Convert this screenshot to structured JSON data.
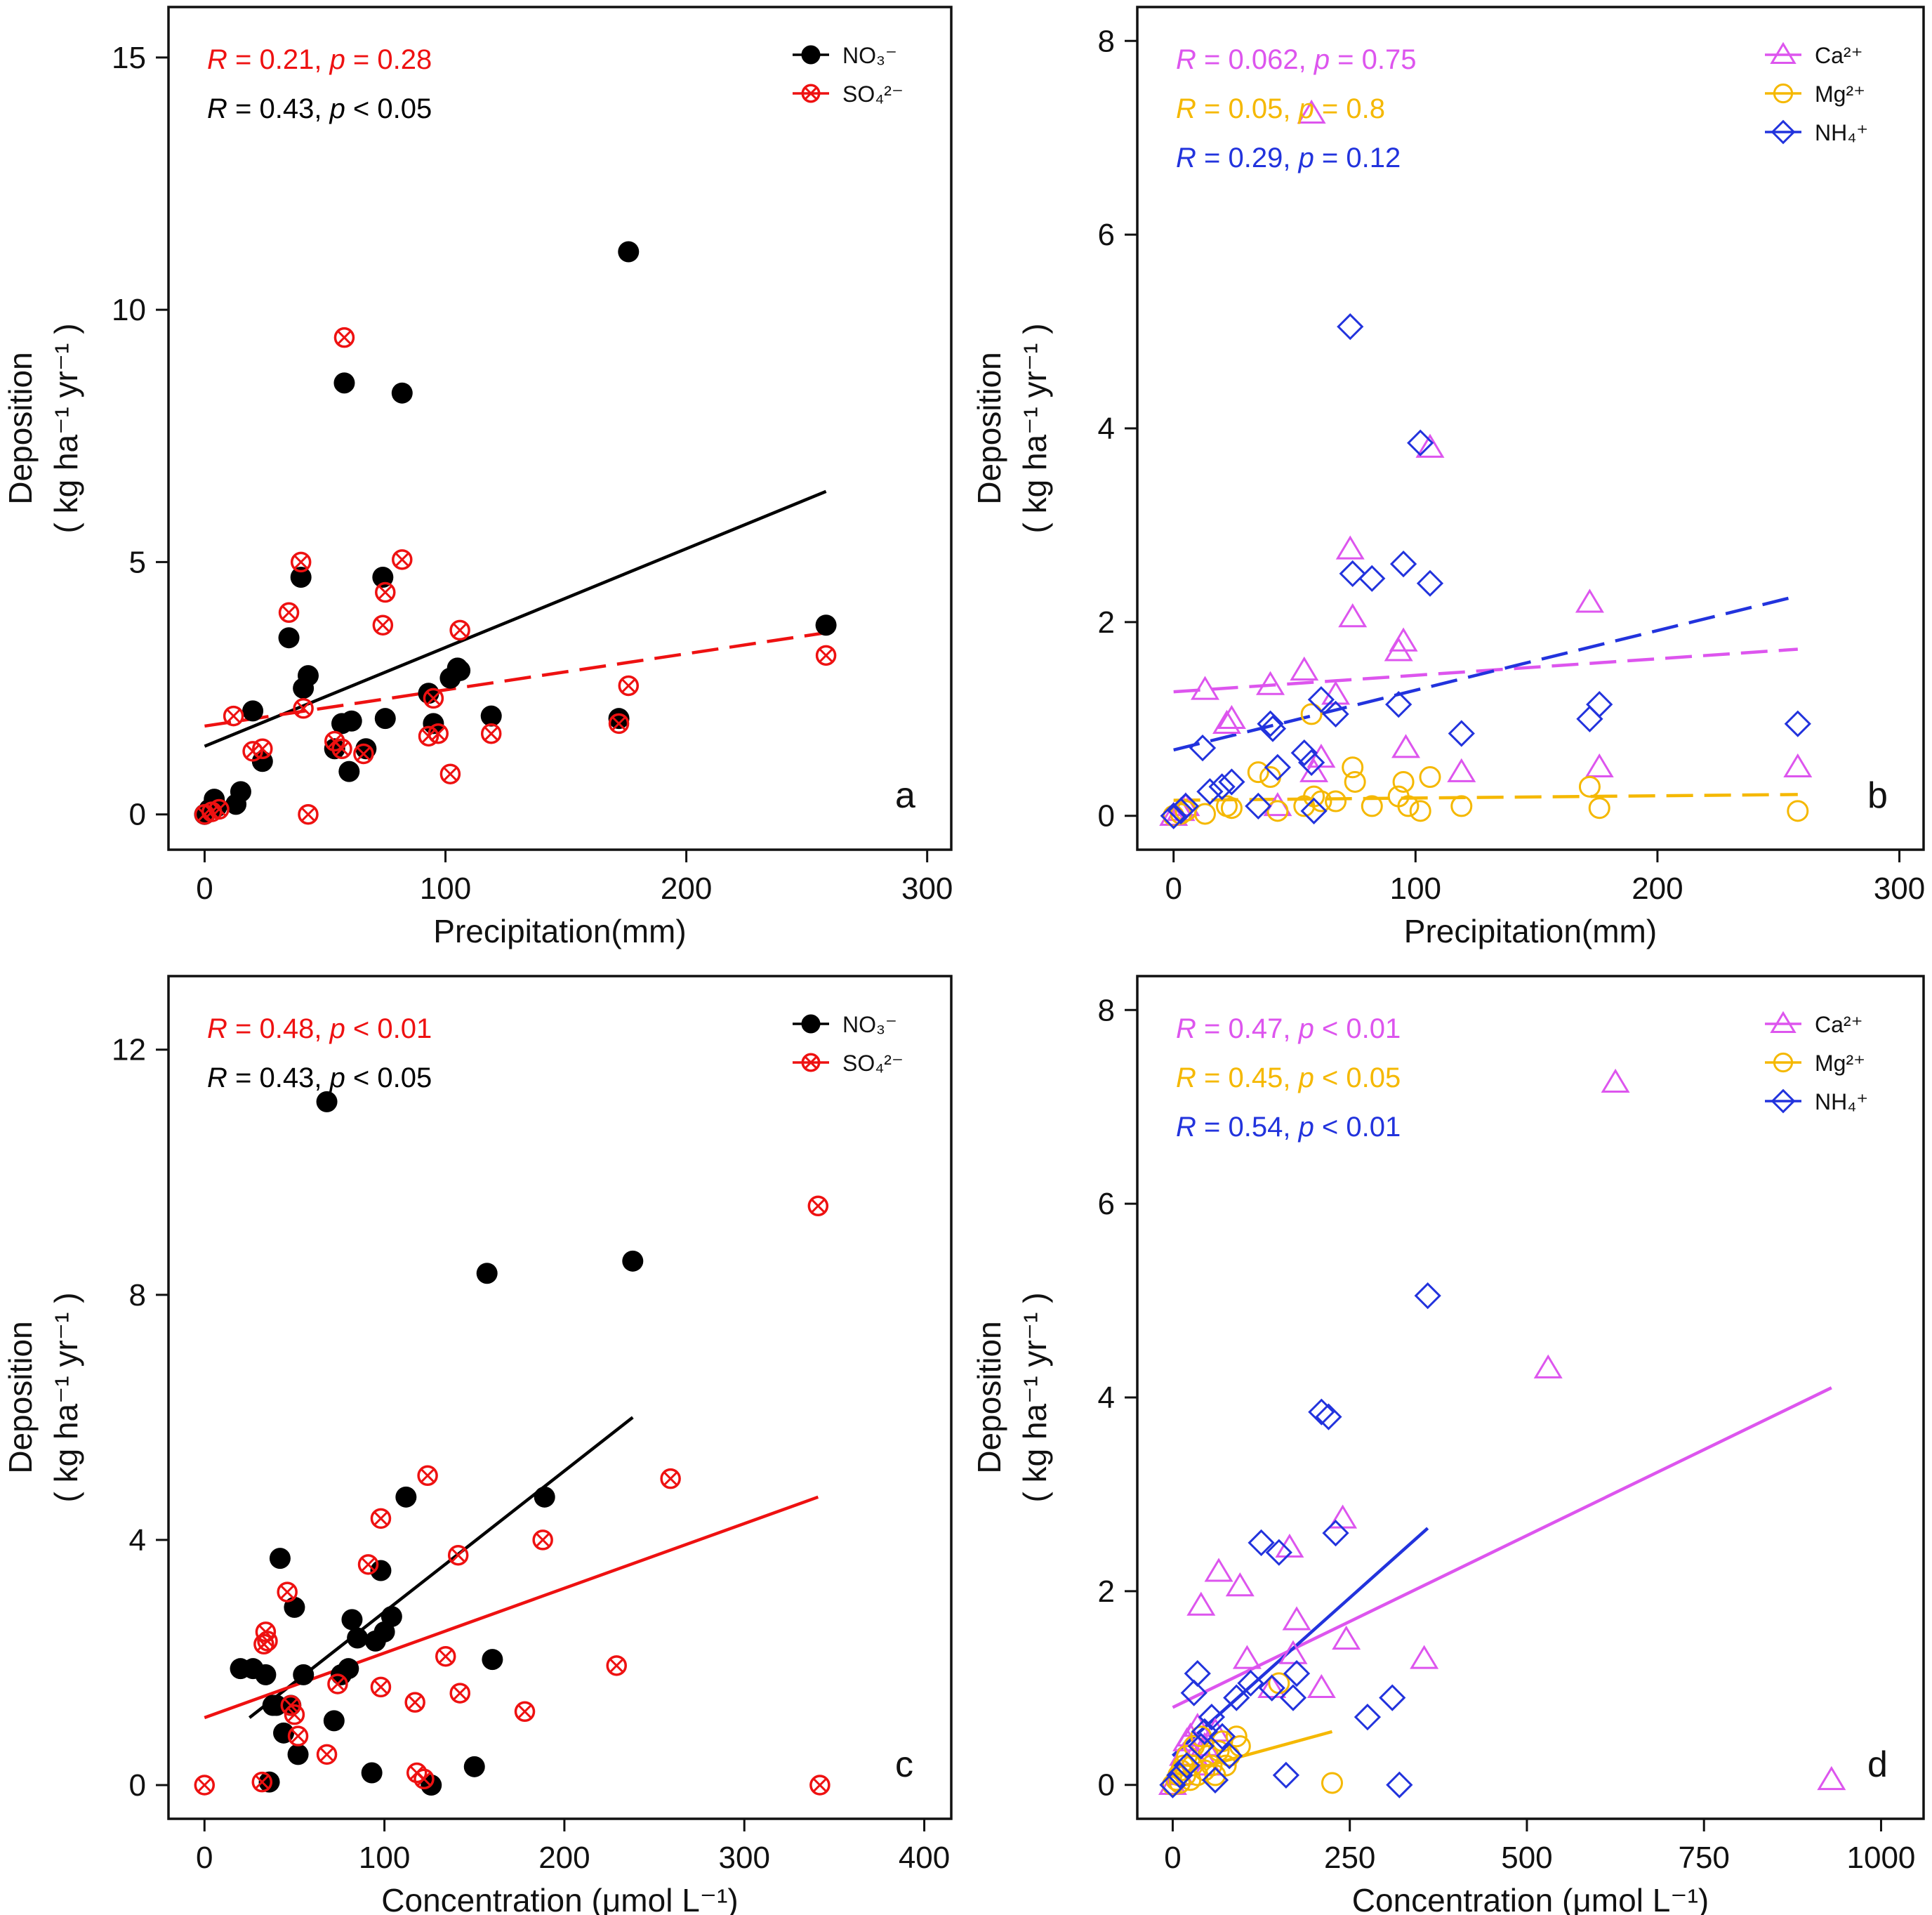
{
  "colors": {
    "no3": "#000000",
    "so4": "#ee1111",
    "ca": "#dd55ee",
    "mg": "#f5b800",
    "nh4": "#2233dd",
    "axis": "#111111"
  },
  "chart_data": [
    {
      "id": "a",
      "type": "scatter",
      "panel_label": "a",
      "xlabel": "Precipitation(mm)",
      "ylabel_line1": "Deposition",
      "ylabel_line2": "( kg ha⁻¹ yr⁻¹ )",
      "xlim": [
        -15,
        310
      ],
      "ylim": [
        -0.7,
        16
      ],
      "xticks": [
        0,
        100,
        200,
        300
      ],
      "yticks": [
        0,
        5,
        10,
        15
      ],
      "legend": {
        "position": "top-right",
        "entries": [
          {
            "label": "NO₃⁻",
            "series": "no3"
          },
          {
            "label": "SO₄²⁻",
            "series": "so4"
          }
        ]
      },
      "annotations": [
        {
          "r_label": "R",
          "r_eq": " = 0.21, ",
          "p_label": "p",
          "p_eq": " = 0.28",
          "color": "so4"
        },
        {
          "r_label": "R",
          "r_eq": " = 0.43, ",
          "p_label": "p",
          "p_eq": " < 0.05",
          "color": "no3"
        }
      ],
      "series": [
        {
          "key": "no3",
          "name": "NO3-",
          "marker": "filled-circle",
          "color": "no3",
          "x": [
            0,
            2,
            4,
            5,
            13,
            15,
            20,
            24,
            35,
            40,
            41,
            43,
            54,
            57,
            58,
            60,
            61,
            67,
            74,
            75,
            82,
            93,
            95,
            102,
            105,
            106,
            119,
            172,
            176,
            258
          ],
          "y": [
            0,
            0.1,
            0.3,
            0.15,
            0.2,
            0.45,
            2.05,
            1.05,
            3.5,
            4.7,
            2.5,
            2.75,
            1.3,
            1.8,
            8.55,
            0.85,
            1.85,
            1.3,
            4.7,
            1.9,
            8.35,
            2.4,
            1.8,
            2.7,
            2.9,
            2.85,
            1.95,
            1.9,
            11.15,
            3.75
          ]
        },
        {
          "key": "so4",
          "name": "SO4 2-",
          "marker": "crossed-circle",
          "color": "so4",
          "x": [
            0,
            3,
            6,
            12,
            20,
            24,
            35,
            40,
            41,
            43,
            54,
            57,
            58,
            66,
            74,
            75,
            82,
            93,
            95,
            97,
            102,
            106,
            119,
            172,
            176,
            258
          ],
          "y": [
            0,
            0.05,
            0.1,
            1.95,
            1.25,
            1.3,
            4.0,
            5.0,
            2.1,
            0,
            1.45,
            1.3,
            9.45,
            1.2,
            3.75,
            4.4,
            5.05,
            1.55,
            2.3,
            1.6,
            0.8,
            3.65,
            1.6,
            1.8,
            2.55,
            3.15
          ]
        }
      ],
      "fits": [
        {
          "series": "no3",
          "style": "solid",
          "x": [
            0,
            258
          ],
          "y": [
            1.35,
            6.4
          ]
        },
        {
          "series": "so4",
          "style": "dashed",
          "x": [
            0,
            258
          ],
          "y": [
            1.75,
            3.6
          ]
        }
      ]
    },
    {
      "id": "b",
      "type": "scatter",
      "panel_label": "b",
      "xlabel": "Precipitation(mm)",
      "ylabel_line1": "Deposition",
      "ylabel_line2": "( kg ha⁻¹ yr⁻¹ )",
      "xlim": [
        -15,
        310
      ],
      "ylim": [
        -0.35,
        8.35
      ],
      "xticks": [
        0,
        100,
        200,
        300
      ],
      "yticks": [
        0,
        2,
        4,
        6,
        8
      ],
      "legend": {
        "position": "top-right",
        "entries": [
          {
            "label": "Ca²⁺",
            "series": "ca"
          },
          {
            "label": "Mg²⁺",
            "series": "mg"
          },
          {
            "label": "NH₄⁺",
            "series": "nh4"
          }
        ]
      },
      "annotations": [
        {
          "r_label": "R",
          "r_eq": " = 0.062, ",
          "p_label": "p",
          "p_eq": " = 0.75",
          "color": "ca"
        },
        {
          "r_label": "R",
          "r_eq": " = 0.05, ",
          "p_label": "p",
          "p_eq": " = 0.8",
          "color": "mg"
        },
        {
          "r_label": "R",
          "r_eq": " = 0.29, ",
          "p_label": "p",
          "p_eq": " = 0.12",
          "color": "nh4"
        }
      ],
      "series": [
        {
          "key": "ca",
          "name": "Ca2+",
          "marker": "open-triangle",
          "color": "ca",
          "x": [
            0,
            3,
            5,
            13,
            22,
            24,
            40,
            43,
            54,
            57,
            58,
            61,
            67,
            73,
            74,
            93,
            95,
            96,
            106,
            119,
            172,
            176,
            258
          ],
          "y": [
            0,
            0.05,
            0.1,
            1.3,
            0.95,
            1.0,
            1.35,
            0.1,
            1.5,
            7.25,
            0.45,
            0.6,
            1.25,
            2.75,
            2.05,
            1.7,
            1.8,
            0.7,
            3.8,
            0.45,
            2.2,
            0.5,
            0.5
          ]
        },
        {
          "key": "mg",
          "name": "Mg2+",
          "marker": "open-circle",
          "color": "mg",
          "x": [
            0,
            3,
            5,
            13,
            22,
            24,
            35,
            40,
            43,
            54,
            57,
            58,
            61,
            67,
            74,
            75,
            82,
            93,
            95,
            97,
            102,
            106,
            119,
            172,
            176,
            258
          ],
          "y": [
            0,
            0.02,
            0.05,
            0.02,
            0.1,
            0.08,
            0.45,
            0.4,
            0.05,
            0.1,
            1.05,
            0.2,
            0.15,
            0.15,
            0.5,
            0.35,
            0.1,
            0.2,
            0.35,
            0.1,
            0.05,
            0.4,
            0.1,
            0.3,
            0.08,
            0.05
          ]
        },
        {
          "key": "nh4",
          "name": "NH4+",
          "marker": "open-diamond",
          "color": "nh4",
          "x": [
            0,
            3,
            5,
            12,
            15,
            20,
            24,
            35,
            40,
            41,
            43,
            54,
            57,
            58,
            61,
            67,
            73,
            74,
            82,
            93,
            95,
            102,
            106,
            119,
            172,
            176,
            258
          ],
          "y": [
            0,
            0.05,
            0.1,
            0.7,
            0.25,
            0.3,
            0.35,
            0.1,
            0.95,
            0.9,
            0.5,
            0.65,
            0.55,
            0.05,
            1.2,
            1.05,
            5.05,
            2.5,
            2.45,
            1.15,
            2.6,
            3.85,
            2.4,
            0.85,
            1.0,
            1.15,
            0.95
          ]
        }
      ],
      "fits": [
        {
          "series": "ca",
          "style": "dashed",
          "x": [
            0,
            258
          ],
          "y": [
            1.28,
            1.72
          ]
        },
        {
          "series": "mg",
          "style": "dashed",
          "x": [
            0,
            258
          ],
          "y": [
            0.16,
            0.22
          ]
        },
        {
          "series": "nh4",
          "style": "dashed",
          "x": [
            0,
            258
          ],
          "y": [
            0.68,
            2.27
          ]
        }
      ]
    },
    {
      "id": "c",
      "type": "scatter",
      "panel_label": "c",
      "xlabel": "Concentration (μmol L⁻¹)",
      "ylabel_line1": "Deposition",
      "ylabel_line2": "( kg ha⁻¹ yr⁻¹ )",
      "xlim": [
        -20,
        415
      ],
      "ylim": [
        -0.55,
        13.2
      ],
      "xticks": [
        0,
        100,
        200,
        300,
        400
      ],
      "yticks": [
        0,
        4,
        8,
        12
      ],
      "legend": {
        "position": "top-right",
        "entries": [
          {
            "label": "NO₃⁻",
            "series": "no3"
          },
          {
            "label": "SO₄²⁻",
            "series": "so4"
          }
        ]
      },
      "annotations": [
        {
          "r_label": "R",
          "r_eq": " = 0.48, ",
          "p_label": "p",
          "p_eq": " < 0.01",
          "color": "so4"
        },
        {
          "r_label": "R",
          "r_eq": " = 0.43, ",
          "p_label": "p",
          "p_eq": " < 0.05",
          "color": "no3"
        }
      ],
      "series": [
        {
          "key": "no3",
          "name": "NO3-",
          "marker": "filled-circle",
          "color": "no3",
          "x": [
            20,
            27,
            34,
            36,
            38,
            40,
            42,
            44,
            48,
            50,
            52,
            55,
            68,
            72,
            76,
            80,
            82,
            85,
            93,
            95,
            98,
            100,
            104,
            112,
            126,
            150,
            157,
            160,
            189,
            238
          ],
          "y": [
            1.9,
            1.9,
            1.8,
            0.05,
            1.3,
            1.3,
            3.7,
            0.85,
            1.3,
            2.9,
            0.5,
            1.8,
            11.15,
            1.05,
            1.8,
            1.9,
            2.7,
            2.4,
            0.2,
            2.35,
            3.5,
            2.5,
            2.75,
            4.7,
            0,
            0.3,
            8.35,
            2.05,
            4.7,
            8.55
          ]
        },
        {
          "key": "so4",
          "name": "SO4 2-",
          "marker": "crossed-circle",
          "color": "so4",
          "x": [
            0,
            32,
            33,
            34,
            35,
            46,
            48,
            50,
            52,
            68,
            74,
            91,
            98,
            98,
            117,
            118,
            122,
            124,
            134,
            141,
            142,
            178,
            188,
            229,
            259,
            341,
            342
          ],
          "y": [
            0,
            0.05,
            2.3,
            2.5,
            2.35,
            3.15,
            1.3,
            1.15,
            0.8,
            0.5,
            1.65,
            3.6,
            4.35,
            1.6,
            1.35,
            0.2,
            0.1,
            5.05,
            2.1,
            3.75,
            1.5,
            1.2,
            4.0,
            1.95,
            5.0,
            9.45,
            0
          ]
        }
      ],
      "fits": [
        {
          "series": "no3",
          "style": "solid",
          "x": [
            25,
            238
          ],
          "y": [
            1.1,
            6.0
          ]
        },
        {
          "series": "so4",
          "style": "solid",
          "x": [
            0,
            341
          ],
          "y": [
            1.1,
            4.7
          ]
        }
      ]
    },
    {
      "id": "d",
      "type": "scatter",
      "panel_label": "d",
      "xlabel": "Concentration (μmol L⁻¹)",
      "ylabel_line1": "Deposition",
      "ylabel_line2": "( kg ha⁻¹ yr⁻¹ )",
      "xlim": [
        -50,
        1060
      ],
      "ylim": [
        -0.35,
        8.35
      ],
      "xticks": [
        0,
        250,
        500,
        750,
        1000
      ],
      "yticks": [
        0,
        2,
        4,
        6,
        8
      ],
      "legend": {
        "position": "top-right",
        "entries": [
          {
            "label": "Ca²⁺",
            "series": "ca"
          },
          {
            "label": "Mg²⁺",
            "series": "mg"
          },
          {
            "label": "NH₄⁺",
            "series": "nh4"
          }
        ]
      },
      "annotations": [
        {
          "r_label": "R",
          "r_eq": " = 0.47, ",
          "p_label": "p",
          "p_eq": " < 0.01",
          "color": "ca"
        },
        {
          "r_label": "R",
          "r_eq": " = 0.45, ",
          "p_label": "p",
          "p_eq": " < 0.05",
          "color": "mg"
        },
        {
          "r_label": "R",
          "r_eq": " = 0.54, ",
          "p_label": "p",
          "p_eq": " < 0.01",
          "color": "nh4"
        }
      ],
      "series": [
        {
          "key": "ca",
          "name": "Ca2+",
          "marker": "open-triangle",
          "color": "ca",
          "x": [
            0,
            10,
            15,
            20,
            25,
            30,
            35,
            40,
            45,
            50,
            60,
            65,
            95,
            105,
            140,
            165,
            170,
            175,
            210,
            240,
            245,
            355,
            530,
            625,
            930
          ],
          "y": [
            0,
            0.1,
            0.3,
            0.45,
            0.5,
            0.3,
            0.6,
            1.85,
            0.4,
            0.2,
            0.55,
            2.2,
            2.05,
            1.3,
            1.0,
            2.45,
            1.35,
            1.7,
            1.0,
            2.75,
            1.5,
            1.3,
            4.3,
            7.25,
            0.05
          ]
        },
        {
          "key": "mg",
          "name": "Mg2+",
          "marker": "open-circle",
          "color": "mg",
          "x": [
            0,
            5,
            8,
            10,
            12,
            15,
            18,
            20,
            25,
            28,
            30,
            35,
            40,
            45,
            50,
            55,
            60,
            65,
            70,
            75,
            80,
            90,
            95,
            150,
            225
          ],
          "y": [
            0,
            0.05,
            0.1,
            0.02,
            0.15,
            0.2,
            0.1,
            0.3,
            0.05,
            0.2,
            0.4,
            0.1,
            0.5,
            0.15,
            0.3,
            0.2,
            0.1,
            0.35,
            0.45,
            0.2,
            0.3,
            0.5,
            0.4,
            1.05,
            0.02
          ]
        },
        {
          "key": "nh4",
          "name": "NH4+",
          "marker": "open-diamond",
          "color": "nh4",
          "x": [
            0,
            10,
            20,
            30,
            35,
            40,
            45,
            55,
            60,
            70,
            80,
            90,
            110,
            125,
            140,
            150,
            160,
            170,
            175,
            210,
            220,
            230,
            275,
            310,
            320,
            360
          ],
          "y": [
            0,
            0.1,
            0.2,
            0.95,
            1.15,
            0.4,
            0.55,
            0.7,
            0.05,
            0.5,
            0.3,
            0.9,
            1.05,
            2.5,
            1.0,
            2.4,
            0.1,
            0.9,
            1.15,
            3.85,
            3.8,
            2.6,
            0.7,
            0.9,
            0,
            5.05
          ]
        }
      ],
      "fits": [
        {
          "series": "ca",
          "style": "solid",
          "x": [
            0,
            930
          ],
          "y": [
            0.8,
            4.1
          ]
        },
        {
          "series": "mg",
          "style": "solid",
          "x": [
            0,
            225
          ],
          "y": [
            0.1,
            0.55
          ]
        },
        {
          "series": "nh4",
          "style": "solid",
          "x": [
            0,
            360
          ],
          "y": [
            0.3,
            2.65
          ]
        }
      ]
    }
  ]
}
